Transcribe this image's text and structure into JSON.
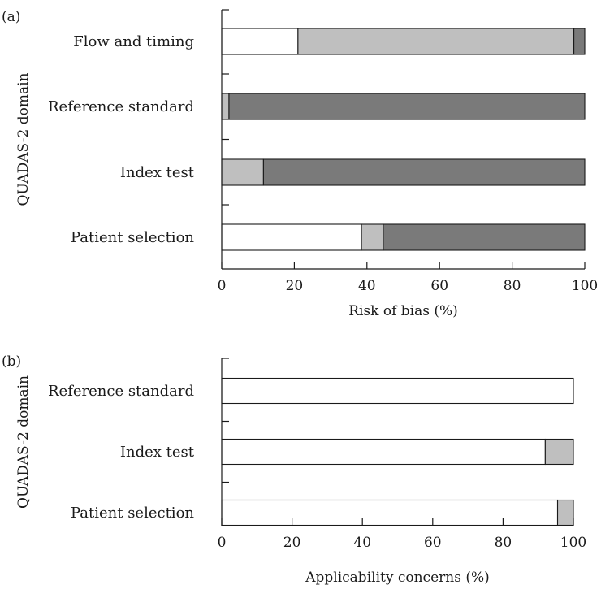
{
  "chart_data": [
    {
      "type": "bar",
      "orientation": "horizontal",
      "stacked": true,
      "panel_label": "(a)",
      "ylabel": "QUADAS-2 domain",
      "xlabel": "Risk of bias (%)",
      "xlim": [
        0,
        100
      ],
      "xticks": [
        "0",
        "20",
        "40",
        "60",
        "80",
        "100"
      ],
      "categories": [
        "Flow and timing",
        "Reference standard",
        "Index test",
        "Patient selection"
      ],
      "segment_colors": [
        "#ffffff",
        "#bfbfbf",
        "#7a7a7a"
      ],
      "segments": [
        [
          21,
          76,
          3
        ],
        [
          0,
          2,
          98
        ],
        [
          0,
          11.5,
          88.5
        ],
        [
          38.5,
          6,
          55.5
        ]
      ],
      "grid": false,
      "legend": "none"
    },
    {
      "type": "bar",
      "orientation": "horizontal",
      "stacked": true,
      "panel_label": "(b)",
      "ylabel": "QUADAS-2 domain",
      "xlabel": "Applicability concerns (%)",
      "xlim": [
        0,
        100
      ],
      "xticks": [
        "0",
        "20",
        "40",
        "60",
        "80",
        "100"
      ],
      "categories": [
        "Reference standard",
        "Index test",
        "Patient selection"
      ],
      "segment_colors": [
        "#ffffff",
        "#bfbfbf",
        "#7a7a7a"
      ],
      "segments": [
        [
          100,
          0,
          0
        ],
        [
          92,
          8,
          0
        ],
        [
          95.5,
          4.5,
          0
        ]
      ],
      "grid": false,
      "legend": "none"
    }
  ]
}
